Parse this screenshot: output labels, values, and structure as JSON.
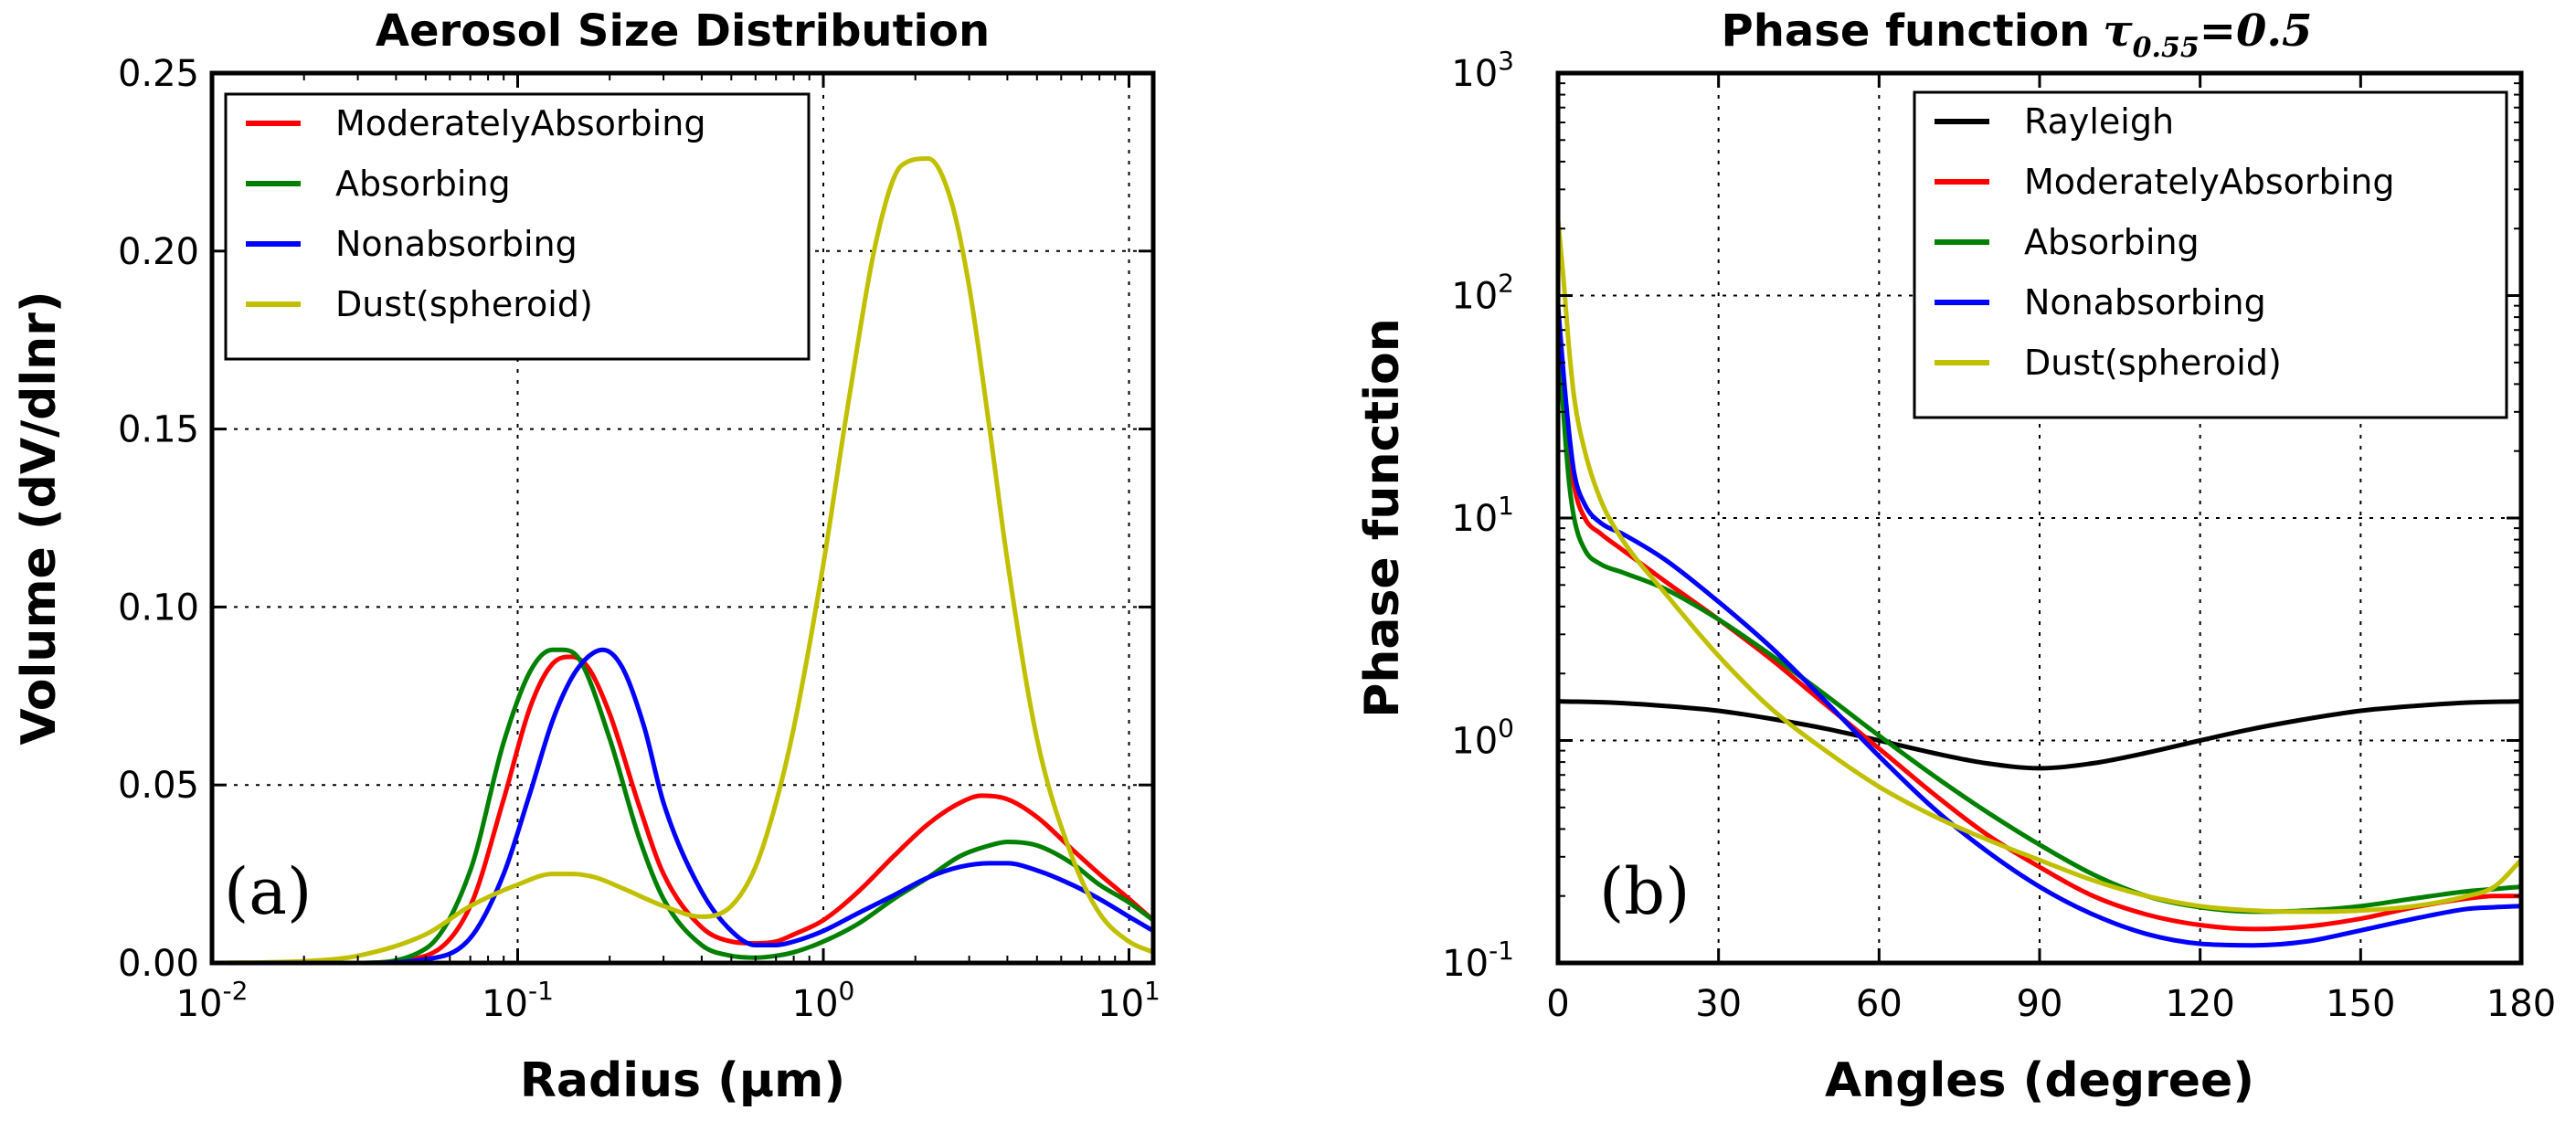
{
  "colors": {
    "Rayleigh": "#000000",
    "ModeratelyAbsorbing": "#ff0000",
    "Absorbing": "#008000",
    "Nonabsorbing": "#0000ff",
    "Dust(spheroid)": "#c0c000"
  },
  "chart_data": [
    {
      "type": "line",
      "title": "Aerosol Size Distribution",
      "xlabel": "Radius (μm)",
      "ylabel": "Volume (dV/dlnr)",
      "xscale": "log",
      "xlim": [
        0.01,
        12
      ],
      "ylim": [
        0,
        0.25
      ],
      "xticks": [
        0.01,
        0.1,
        1,
        10
      ],
      "xtick_labels": [
        {
          "base": "10",
          "exp": "-2"
        },
        {
          "base": "10",
          "exp": "-1"
        },
        {
          "base": "10",
          "exp": "0"
        },
        {
          "base": "10",
          "exp": "1"
        }
      ],
      "yticks": [
        0,
        0.05,
        0.1,
        0.15,
        0.2,
        0.25
      ],
      "ytick_labels": [
        "0.00",
        "0.05",
        "0.10",
        "0.15",
        "0.20",
        "0.25"
      ],
      "grid": true,
      "legend_position": "top-left",
      "panel_label": "(a)",
      "series": [
        {
          "name": "ModeratelyAbsorbing",
          "x": [
            0.01,
            0.03,
            0.05,
            0.07,
            0.09,
            0.11,
            0.13,
            0.15,
            0.17,
            0.2,
            0.25,
            0.3,
            0.4,
            0.5,
            0.6,
            0.7,
            0.8,
            1.0,
            1.3,
            1.7,
            2.2,
            2.8,
            3.3,
            4.0,
            5.0,
            6.5,
            8.0,
            10,
            12
          ],
          "values": [
            0,
            0,
            0.002,
            0.016,
            0.046,
            0.072,
            0.084,
            0.086,
            0.083,
            0.07,
            0.044,
            0.025,
            0.01,
            0.006,
            0.0055,
            0.006,
            0.008,
            0.012,
            0.02,
            0.03,
            0.039,
            0.045,
            0.047,
            0.046,
            0.041,
            0.032,
            0.025,
            0.018,
            0.012
          ]
        },
        {
          "name": "Absorbing",
          "x": [
            0.01,
            0.03,
            0.05,
            0.07,
            0.09,
            0.11,
            0.13,
            0.14,
            0.16,
            0.2,
            0.25,
            0.3,
            0.4,
            0.5,
            0.6,
            0.7,
            0.8,
            1.0,
            1.3,
            1.7,
            2.2,
            2.8,
            3.5,
            4.0,
            5.0,
            6.5,
            8.0,
            10,
            12
          ],
          "values": [
            0,
            0,
            0.004,
            0.026,
            0.062,
            0.082,
            0.088,
            0.088,
            0.085,
            0.063,
            0.035,
            0.018,
            0.005,
            0.002,
            0.0015,
            0.002,
            0.003,
            0.006,
            0.011,
            0.018,
            0.024,
            0.03,
            0.033,
            0.034,
            0.033,
            0.028,
            0.022,
            0.017,
            0.012
          ]
        },
        {
          "name": "Nonabsorbing",
          "x": [
            0.01,
            0.03,
            0.05,
            0.07,
            0.09,
            0.11,
            0.13,
            0.15,
            0.17,
            0.19,
            0.22,
            0.26,
            0.3,
            0.4,
            0.5,
            0.6,
            0.7,
            0.8,
            1.0,
            1.3,
            1.7,
            2.2,
            2.8,
            3.5,
            4.0,
            5.0,
            6.5,
            8.0,
            10,
            12
          ],
          "values": [
            0,
            0,
            0.001,
            0.007,
            0.025,
            0.048,
            0.068,
            0.08,
            0.086,
            0.088,
            0.083,
            0.066,
            0.045,
            0.02,
            0.009,
            0.005,
            0.005,
            0.006,
            0.009,
            0.014,
            0.019,
            0.024,
            0.027,
            0.028,
            0.028,
            0.026,
            0.022,
            0.018,
            0.013,
            0.009
          ]
        },
        {
          "name": "Dust(spheroid)",
          "x": [
            0.01,
            0.02,
            0.03,
            0.05,
            0.07,
            0.1,
            0.13,
            0.15,
            0.18,
            0.22,
            0.3,
            0.4,
            0.5,
            0.6,
            0.7,
            0.8,
            1.0,
            1.2,
            1.5,
            1.8,
            2.2,
            2.6,
            3.0,
            3.5,
            4.0,
            5.0,
            6.5,
            8.0,
            10,
            12
          ],
          "values": [
            0,
            0.0005,
            0.002,
            0.008,
            0.016,
            0.022,
            0.025,
            0.025,
            0.024,
            0.021,
            0.016,
            0.013,
            0.016,
            0.027,
            0.045,
            0.066,
            0.112,
            0.156,
            0.204,
            0.224,
            0.226,
            0.215,
            0.19,
            0.15,
            0.113,
            0.063,
            0.03,
            0.014,
            0.006,
            0.003
          ]
        }
      ]
    },
    {
      "type": "line",
      "title": "Phase function",
      "title_math": {
        "base": "τ",
        "sub": "0.55",
        "rest": "=0.5"
      },
      "xlabel": "Angles (degree)",
      "ylabel": "Phase function",
      "yscale": "log",
      "xlim": [
        0,
        180
      ],
      "ylim": [
        0.1,
        1000
      ],
      "xticks": [
        0,
        30,
        60,
        90,
        120,
        150,
        180
      ],
      "xtick_labels": [
        "0",
        "30",
        "60",
        "90",
        "120",
        "150",
        "180"
      ],
      "yticks": [
        0.1,
        1,
        10,
        100,
        1000
      ],
      "ytick_labels": [
        {
          "base": "10",
          "exp": "-1"
        },
        {
          "base": "10",
          "exp": "0"
        },
        {
          "base": "10",
          "exp": "1"
        },
        {
          "base": "10",
          "exp": "2"
        },
        {
          "base": "10",
          "exp": "3"
        }
      ],
      "grid": true,
      "legend_position": "top-right",
      "panel_label": "(b)",
      "series": [
        {
          "name": "Rayleigh",
          "x": [
            0,
            10,
            20,
            30,
            40,
            50,
            60,
            70,
            80,
            90,
            100,
            110,
            120,
            130,
            140,
            150,
            160,
            170,
            180
          ],
          "values": [
            1.5,
            1.48,
            1.43,
            1.36,
            1.25,
            1.13,
            1.0,
            0.88,
            0.79,
            0.75,
            0.79,
            0.88,
            1.0,
            1.13,
            1.25,
            1.36,
            1.43,
            1.48,
            1.5
          ]
        },
        {
          "name": "ModeratelyAbsorbing",
          "x": [
            0,
            1,
            2,
            3,
            5,
            8,
            12,
            20,
            30,
            40,
            50,
            60,
            70,
            80,
            90,
            100,
            110,
            120,
            130,
            140,
            150,
            160,
            170,
            175,
            180
          ],
          "values": [
            80,
            40,
            22,
            14,
            10,
            8.5,
            7.2,
            5.2,
            3.5,
            2.3,
            1.45,
            0.92,
            0.58,
            0.38,
            0.27,
            0.2,
            0.165,
            0.148,
            0.142,
            0.146,
            0.158,
            0.178,
            0.195,
            0.2,
            0.2
          ]
        },
        {
          "name": "Absorbing",
          "x": [
            0,
            1,
            2,
            3,
            5,
            8,
            12,
            20,
            30,
            40,
            50,
            60,
            70,
            80,
            90,
            100,
            110,
            120,
            130,
            140,
            150,
            160,
            170,
            175,
            180
          ],
          "values": [
            70,
            30,
            15,
            10,
            7.2,
            6.2,
            5.7,
            4.8,
            3.5,
            2.4,
            1.6,
            1.05,
            0.7,
            0.48,
            0.34,
            0.25,
            0.2,
            0.178,
            0.17,
            0.172,
            0.18,
            0.195,
            0.21,
            0.215,
            0.22
          ]
        },
        {
          "name": "Nonabsorbing",
          "x": [
            0,
            1,
            2,
            3,
            5,
            8,
            12,
            20,
            30,
            40,
            50,
            60,
            70,
            80,
            90,
            100,
            110,
            120,
            130,
            140,
            150,
            160,
            170,
            175,
            180
          ],
          "values": [
            90,
            45,
            25,
            16,
            11.5,
            9.5,
            8.5,
            6.5,
            4.2,
            2.6,
            1.5,
            0.85,
            0.5,
            0.32,
            0.22,
            0.165,
            0.135,
            0.122,
            0.12,
            0.125,
            0.14,
            0.158,
            0.175,
            0.178,
            0.18
          ]
        },
        {
          "name": "Dust(spheroid)",
          "x": [
            0,
            1,
            2,
            3,
            5,
            8,
            12,
            20,
            30,
            40,
            50,
            60,
            70,
            80,
            90,
            100,
            110,
            120,
            130,
            140,
            150,
            160,
            170,
            175,
            180
          ],
          "values": [
            220,
            120,
            60,
            35,
            20,
            12,
            8,
            4.6,
            2.4,
            1.38,
            0.9,
            0.62,
            0.46,
            0.36,
            0.29,
            0.235,
            0.2,
            0.18,
            0.172,
            0.17,
            0.172,
            0.18,
            0.2,
            0.22,
            0.29
          ]
        }
      ]
    }
  ]
}
